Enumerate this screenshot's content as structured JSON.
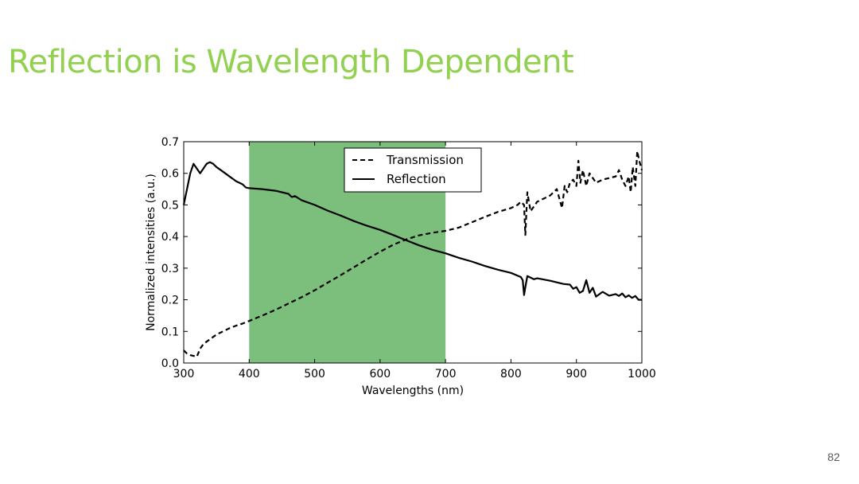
{
  "slide": {
    "title": "Reflection is Wavelength Dependent",
    "title_color": "#92d050",
    "page_number": "82"
  },
  "chart_data": {
    "type": "line",
    "xlabel": "Wavelengths (nm)",
    "ylabel": "Normalized intensities (a.u.)",
    "xlim": [
      300,
      1000
    ],
    "ylim": [
      0,
      0.7
    ],
    "xticks": [
      300,
      400,
      500,
      600,
      700,
      800,
      900,
      1000
    ],
    "yticks": [
      0.0,
      0.1,
      0.2,
      0.3,
      0.4,
      0.5,
      0.6,
      0.7
    ],
    "x_tick_labels": [
      "300",
      "400",
      "500",
      "600",
      "700",
      "800",
      "900",
      "1000"
    ],
    "y_tick_labels": [
      "0.0",
      "0.1",
      "0.2",
      "0.3",
      "0.4",
      "0.5",
      "0.6",
      "0.7"
    ],
    "grid": false,
    "legend_position": "top-center",
    "highlight_band": {
      "x_start": 400,
      "x_end": 700,
      "color": "#7cbf7c"
    },
    "series": [
      {
        "name": "Transmission",
        "style": "dashed",
        "color": "#000000",
        "x": [
          300,
          305,
          310,
          320,
          325,
          330,
          340,
          350,
          360,
          370,
          380,
          390,
          400,
          420,
          440,
          460,
          480,
          500,
          520,
          540,
          560,
          580,
          600,
          620,
          640,
          660,
          680,
          700,
          720,
          740,
          760,
          780,
          800,
          810,
          815,
          820,
          822,
          825,
          830,
          840,
          860,
          870,
          878,
          882,
          886,
          890,
          895,
          900,
          903,
          906,
          910,
          915,
          920,
          930,
          940,
          960,
          965,
          970,
          975,
          980,
          983,
          986,
          990,
          993,
          996,
          1000
        ],
        "y": [
          0.04,
          0.03,
          0.025,
          0.02,
          0.045,
          0.06,
          0.075,
          0.09,
          0.1,
          0.11,
          0.118,
          0.125,
          0.133,
          0.15,
          0.168,
          0.188,
          0.208,
          0.23,
          0.254,
          0.278,
          0.303,
          0.328,
          0.352,
          0.374,
          0.391,
          0.404,
          0.412,
          0.418,
          0.428,
          0.445,
          0.462,
          0.478,
          0.49,
          0.5,
          0.51,
          0.5,
          0.405,
          0.54,
          0.48,
          0.51,
          0.53,
          0.55,
          0.49,
          0.56,
          0.54,
          0.57,
          0.58,
          0.56,
          0.64,
          0.57,
          0.61,
          0.56,
          0.6,
          0.57,
          0.58,
          0.59,
          0.61,
          0.58,
          0.56,
          0.59,
          0.54,
          0.62,
          0.56,
          0.67,
          0.64,
          0.61
        ]
      },
      {
        "name": "Reflection",
        "style": "solid",
        "color": "#000000",
        "x": [
          300,
          305,
          310,
          315,
          320,
          325,
          330,
          335,
          340,
          345,
          350,
          360,
          370,
          380,
          390,
          395,
          400,
          420,
          440,
          460,
          465,
          470,
          480,
          500,
          520,
          540,
          560,
          580,
          600,
          620,
          640,
          660,
          680,
          700,
          720,
          740,
          760,
          780,
          800,
          815,
          818,
          820,
          822,
          825,
          830,
          835,
          840,
          860,
          870,
          880,
          890,
          895,
          900,
          905,
          910,
          915,
          920,
          925,
          930,
          940,
          950,
          960,
          965,
          970,
          975,
          980,
          985,
          990,
          995,
          1000
        ],
        "y": [
          0.5,
          0.55,
          0.6,
          0.63,
          0.615,
          0.6,
          0.615,
          0.63,
          0.635,
          0.63,
          0.62,
          0.605,
          0.59,
          0.575,
          0.565,
          0.555,
          0.553,
          0.55,
          0.545,
          0.535,
          0.525,
          0.528,
          0.515,
          0.5,
          0.482,
          0.466,
          0.449,
          0.434,
          0.421,
          0.405,
          0.388,
          0.372,
          0.358,
          0.347,
          0.333,
          0.321,
          0.307,
          0.295,
          0.285,
          0.272,
          0.262,
          0.215,
          0.24,
          0.275,
          0.27,
          0.265,
          0.268,
          0.26,
          0.255,
          0.25,
          0.248,
          0.235,
          0.24,
          0.222,
          0.228,
          0.262,
          0.222,
          0.238,
          0.21,
          0.225,
          0.213,
          0.218,
          0.212,
          0.22,
          0.208,
          0.214,
          0.206,
          0.212,
          0.2,
          0.2
        ]
      }
    ]
  }
}
